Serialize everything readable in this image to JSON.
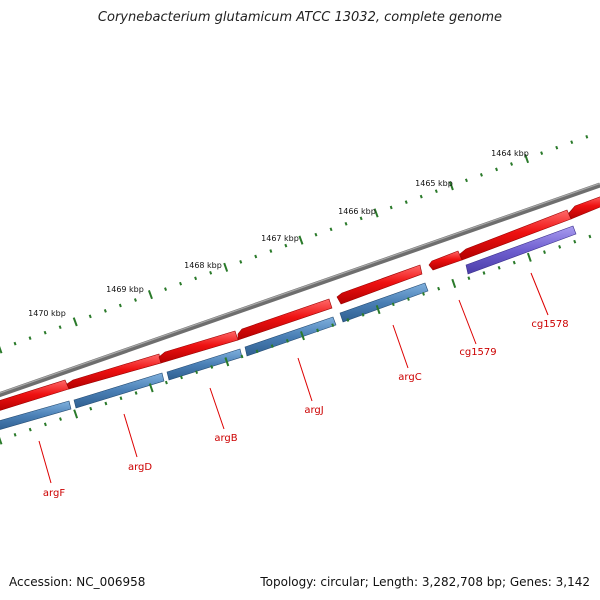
{
  "title": "Corynebacterium glutamicum ATCC 13032, complete genome",
  "footer": {
    "accession": "Accession: NC_006958",
    "summary": "Topology: circular; Length: 3,282,708 bp; Genes: 3,142"
  },
  "scale_labels": [
    "1464 kbp",
    "1465 kbp",
    "1466 kbp",
    "1467 kbp",
    "1468 kbp",
    "1469 kbp",
    "1470 kbp"
  ],
  "gene_labels": [
    "cg1578",
    "cg1579",
    "argC",
    "argJ",
    "argB",
    "argD",
    "argF"
  ],
  "colors": {
    "backbone": "#7a7a7a",
    "gene": "#ee1111",
    "cds": "#4a7fb5",
    "other_cds": "#6f5fd0",
    "tick": "#2a7a2a",
    "label": "#cc0000"
  }
}
